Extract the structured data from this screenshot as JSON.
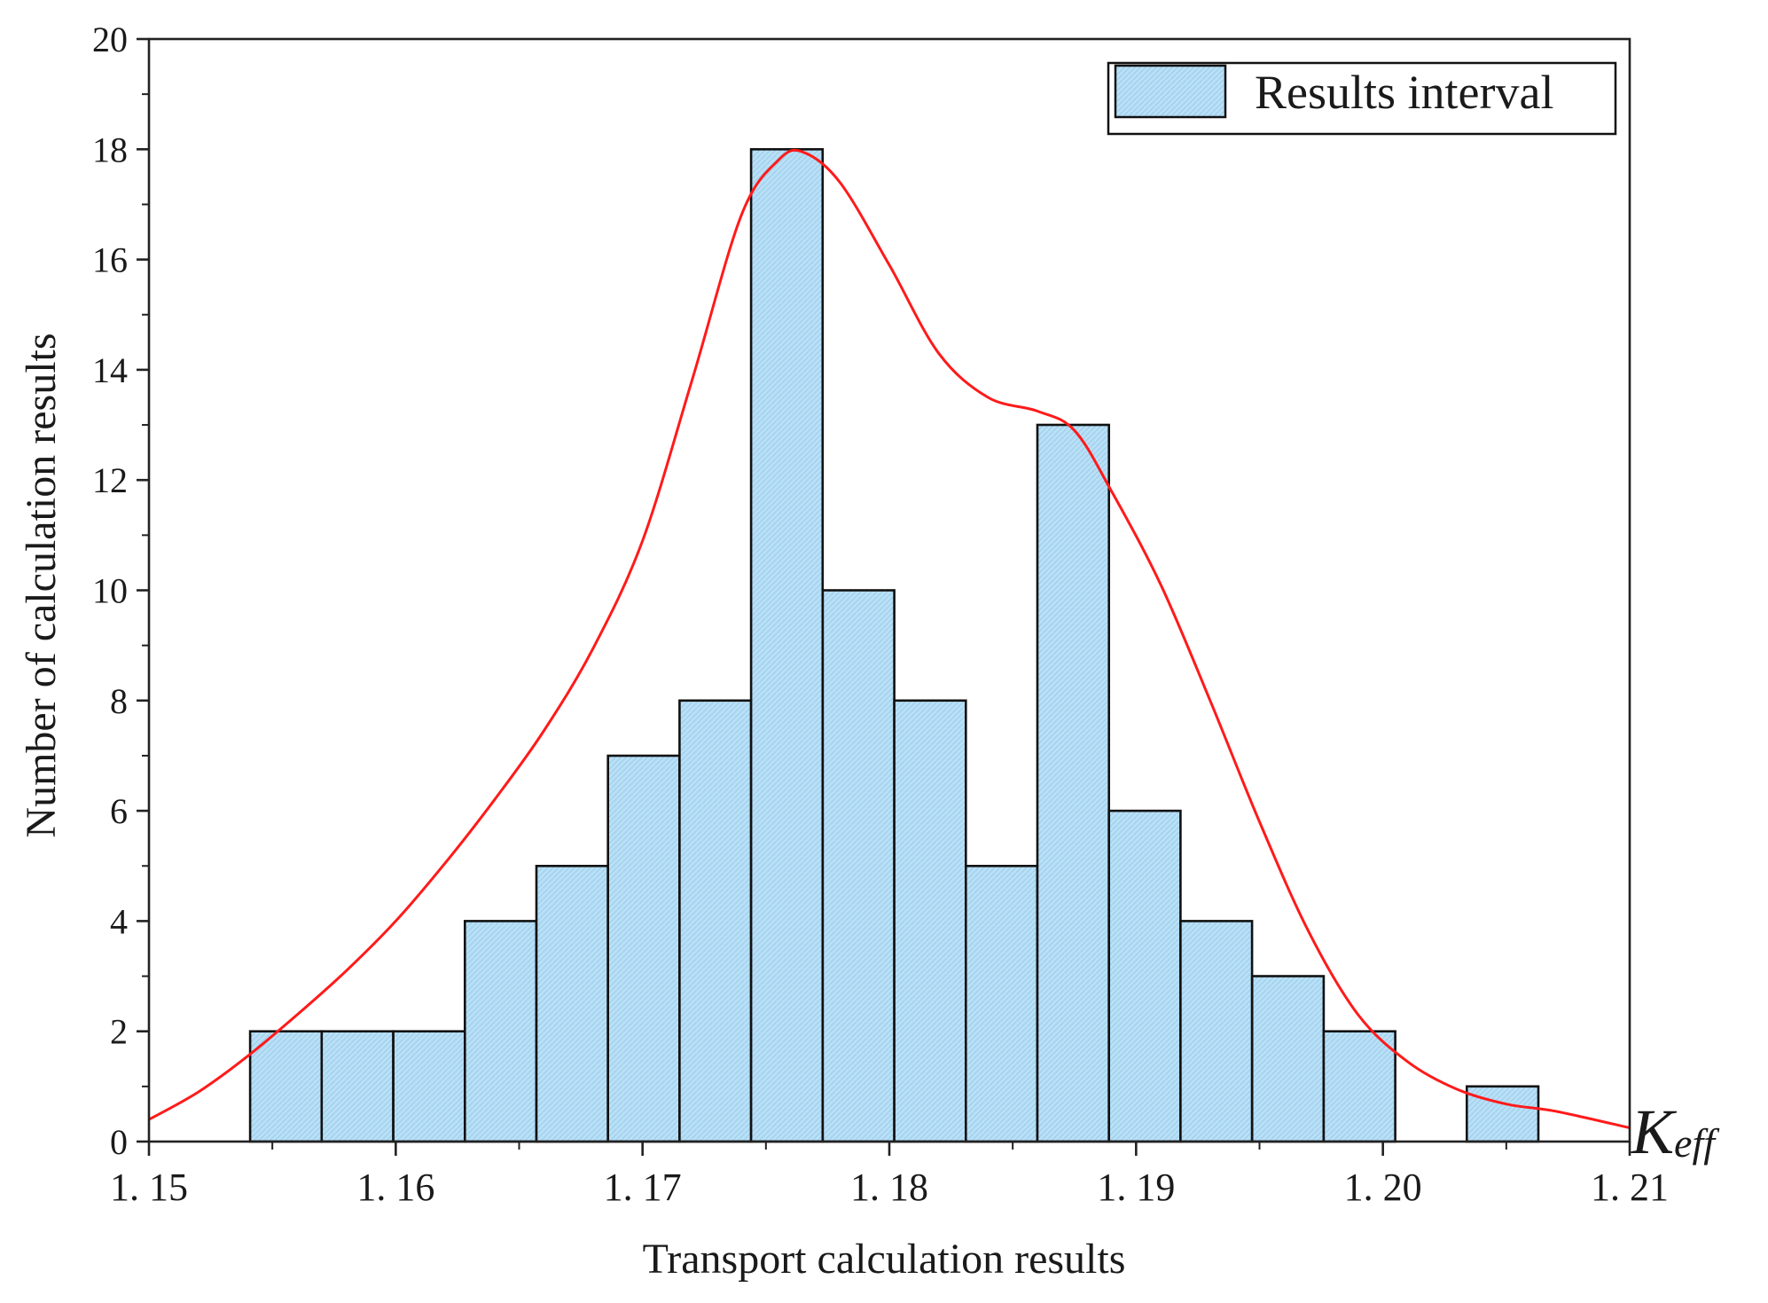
{
  "chart_data": {
    "type": "bar",
    "subtype": "histogram_with_fitted_curve",
    "xlabel": "Transport calculation results",
    "ylabel": "Number of calculation results",
    "x_axis_end_label": {
      "main": "K",
      "sub": "eff"
    },
    "xlim": [
      1.15,
      1.21
    ],
    "ylim": [
      0,
      20
    ],
    "x_ticks": [
      {
        "value": 1.15,
        "label": "1. 15"
      },
      {
        "value": 1.16,
        "label": "1. 16"
      },
      {
        "value": 1.17,
        "label": "1. 17"
      },
      {
        "value": 1.18,
        "label": "1. 18"
      },
      {
        "value": 1.19,
        "label": "1. 19"
      },
      {
        "value": 1.2,
        "label": "1. 20"
      },
      {
        "value": 1.21,
        "label": "1. 21"
      }
    ],
    "y_ticks": [
      0,
      2,
      4,
      6,
      8,
      10,
      12,
      14,
      16,
      18,
      20
    ],
    "bin_width": 0.0029,
    "bins": [
      {
        "start": 1.1541,
        "count": 2
      },
      {
        "start": 1.157,
        "count": 2
      },
      {
        "start": 1.1599,
        "count": 2
      },
      {
        "start": 1.1628,
        "count": 4
      },
      {
        "start": 1.1657,
        "count": 5
      },
      {
        "start": 1.1686,
        "count": 7
      },
      {
        "start": 1.1715,
        "count": 8
      },
      {
        "start": 1.1744,
        "count": 18
      },
      {
        "start": 1.1773,
        "count": 10
      },
      {
        "start": 1.1802,
        "count": 8
      },
      {
        "start": 1.1831,
        "count": 5
      },
      {
        "start": 1.186,
        "count": 13
      },
      {
        "start": 1.1889,
        "count": 6
      },
      {
        "start": 1.1918,
        "count": 4
      },
      {
        "start": 1.1947,
        "count": 3
      },
      {
        "start": 1.1976,
        "count": 2
      },
      {
        "start": 1.2005,
        "count": 0
      },
      {
        "start": 1.2034,
        "count": 1
      }
    ],
    "fit_curve": {
      "color": "#ff1a1a",
      "points": [
        [
          1.15,
          0.4
        ],
        [
          1.152,
          0.9
        ],
        [
          1.154,
          1.55
        ],
        [
          1.156,
          2.3
        ],
        [
          1.158,
          3.1
        ],
        [
          1.16,
          4.0
        ],
        [
          1.162,
          5.05
        ],
        [
          1.164,
          6.2
        ],
        [
          1.166,
          7.45
        ],
        [
          1.168,
          8.95
        ],
        [
          1.17,
          10.9
        ],
        [
          1.172,
          13.8
        ],
        [
          1.174,
          16.8
        ],
        [
          1.1755,
          17.8
        ],
        [
          1.1765,
          17.95
        ],
        [
          1.178,
          17.4
        ],
        [
          1.18,
          15.9
        ],
        [
          1.182,
          14.3
        ],
        [
          1.184,
          13.5
        ],
        [
          1.186,
          13.25
        ],
        [
          1.1875,
          12.9
        ],
        [
          1.189,
          11.8
        ],
        [
          1.191,
          10.1
        ],
        [
          1.193,
          8.0
        ],
        [
          1.195,
          5.8
        ],
        [
          1.197,
          3.8
        ],
        [
          1.199,
          2.3
        ],
        [
          1.201,
          1.45
        ],
        [
          1.203,
          0.95
        ],
        [
          1.205,
          0.68
        ],
        [
          1.207,
          0.55
        ],
        [
          1.21,
          0.25
        ]
      ]
    },
    "legend": {
      "label": "Results interval",
      "position": "top-right"
    },
    "colors": {
      "bar_fill": "#b8e0f7",
      "bar_edge": "#111111",
      "axis": "#222222"
    }
  }
}
